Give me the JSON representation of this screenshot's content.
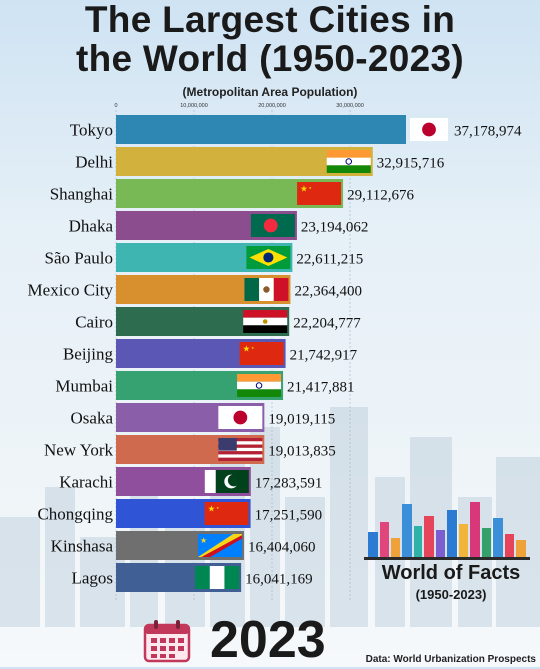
{
  "header": {
    "title_line1": "The Largest Cities in",
    "title_line2": "the World (1950-2023)",
    "subtitle": "(Metropolitan Area Population)"
  },
  "chart_data": {
    "type": "bar",
    "orientation": "horizontal",
    "title": "The Largest Cities in the World (1950-2023)",
    "subtitle": "(Metropolitan Area Population)",
    "xlim": [
      0,
      37178974
    ],
    "xticks": [
      0,
      10000000,
      20000000,
      30000000
    ],
    "xtick_labels": [
      "0",
      "10,000,000",
      "20,000,000",
      "30,000,000"
    ],
    "categories": [
      "Tokyo",
      "Delhi",
      "Shanghai",
      "Dhaka",
      "São Paulo",
      "Mexico City",
      "Cairo",
      "Beijing",
      "Mumbai",
      "Osaka",
      "New York",
      "Karachi",
      "Chongqing",
      "Kinshasa",
      "Lagos"
    ],
    "values": [
      37178974,
      32915716,
      29112676,
      23194062,
      22611215,
      22364400,
      22204777,
      21742917,
      21417881,
      19019115,
      19013835,
      17283591,
      17251590,
      16404060,
      16041169
    ],
    "value_labels": [
      "37,178,974",
      "32,915,716",
      "29,112,676",
      "23,194,062",
      "22,611,215",
      "22,364,400",
      "22,204,777",
      "21,742,917",
      "21,417,881",
      "19,019,115",
      "19,013,835",
      "17,283,591",
      "17,251,590",
      "16,404,060",
      "16,041,169"
    ],
    "bar_colors": [
      "#2e87b3",
      "#d2b13c",
      "#78b955",
      "#8b4d8e",
      "#3fb5b2",
      "#d8902e",
      "#2e6c4f",
      "#5b58b5",
      "#36a171",
      "#8a5ea8",
      "#d06a4e",
      "#8f4f9c",
      "#2f55d6",
      "#6f6f6f",
      "#3f5f95"
    ],
    "flags": [
      "japan",
      "india",
      "china",
      "bangladesh",
      "brazil",
      "mexico",
      "egypt",
      "china",
      "india",
      "japan",
      "usa",
      "pakistan",
      "china",
      "dr-congo",
      "nigeria"
    ],
    "year": "2023"
  },
  "brand": {
    "name": "World of Facts",
    "range": "(1950-2023)"
  },
  "footer": {
    "source": "Data: World Urbanization Prospects"
  },
  "icons": {
    "calendar": "calendar-icon"
  }
}
